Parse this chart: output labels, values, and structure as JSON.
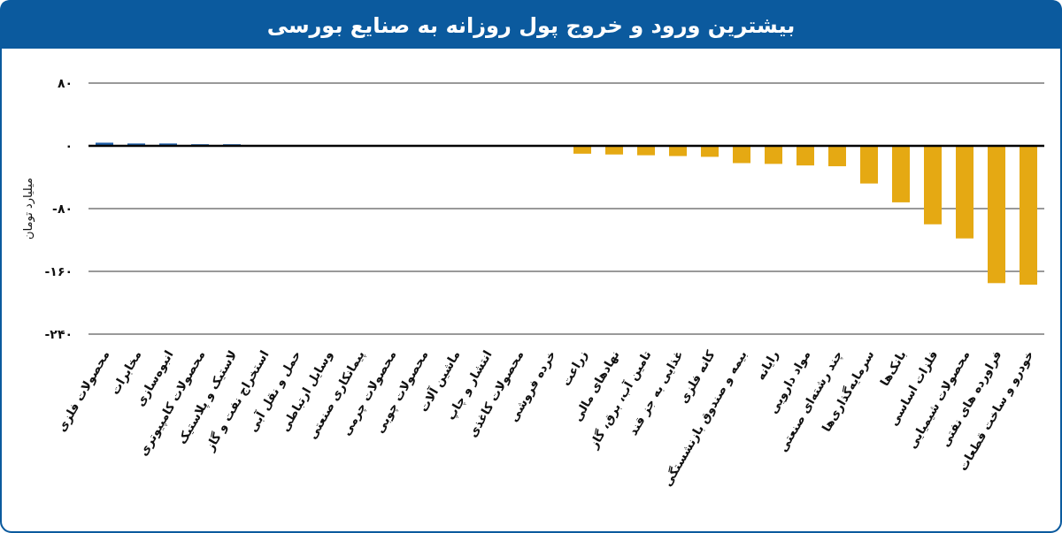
{
  "chart_data": {
    "type": "bar",
    "title": "بیشترین ورود و خروج پول روزانه به صنایع بورسی",
    "ylabel": "میلیارد تومان",
    "categories": [
      "محصولات فلزی",
      "مخابرات",
      "انبوه‌سازی",
      "محصولات کامپیوتری",
      "لاستیک و پلاستیک",
      "استخراج نفت و گاز",
      "حمل و نقل آبی",
      "وسایل ارتباطی",
      "پیمانکاری صنعتی",
      "محصولات چرمی",
      "محصولات چوبی",
      "ماشین آلات",
      "انتشار و چاپ",
      "محصولات کاغذی",
      "خرده فروشی",
      "زراعت",
      "نهادهای مالی",
      "تامین آب، برق، گاز",
      "غذایی به جز قند",
      "کانه فلزی",
      "بیمه و صندوق بازنشستگی",
      "رایانه",
      "مواد دارویی",
      "چند رشته‌ای صنعتی",
      "سرمایه‌گذاری‌ها",
      "بانک‌ها",
      "فلزات اساسی",
      "محصولات شیمیایی",
      "فراورده های نفتی",
      "خودرو و ساخت قطعات"
    ],
    "values": [
      4,
      3,
      3,
      2,
      2,
      0,
      0,
      0,
      0,
      0,
      0,
      0,
      0,
      0,
      0,
      -10,
      -11,
      -12,
      -13,
      -14,
      -22,
      -23,
      -25,
      -26,
      -48,
      -72,
      -100,
      -118,
      -175,
      -177
    ],
    "colors": [
      "#1f5fa8",
      "#1f5fa8",
      "#1f5fa8",
      "#1f5fa8",
      "#1f5fa8",
      "#1f5fa8",
      "#1f5fa8",
      "#1f5fa8",
      "#1f5fa8",
      "#1f5fa8",
      "#1f5fa8",
      "#1f5fa8",
      "#1f5fa8",
      "#1f5fa8",
      "#1f5fa8",
      "#e5a913",
      "#e5a913",
      "#e5a913",
      "#e5a913",
      "#e5a913",
      "#e5a913",
      "#e5a913",
      "#e5a913",
      "#e5a913",
      "#e5a913",
      "#e5a913",
      "#e5a913",
      "#e5a913",
      "#e5a913",
      "#e5a913"
    ],
    "ylim": [
      -240,
      80
    ],
    "yticks": [
      {
        "value": 80,
        "label": "۸۰"
      },
      {
        "value": 0,
        "label": "۰"
      },
      {
        "value": -80,
        "label": "-۸۰"
      },
      {
        "value": -160,
        "label": "-۱۶۰"
      },
      {
        "value": -240,
        "label": "-۲۴۰"
      }
    ],
    "grid": "y"
  }
}
